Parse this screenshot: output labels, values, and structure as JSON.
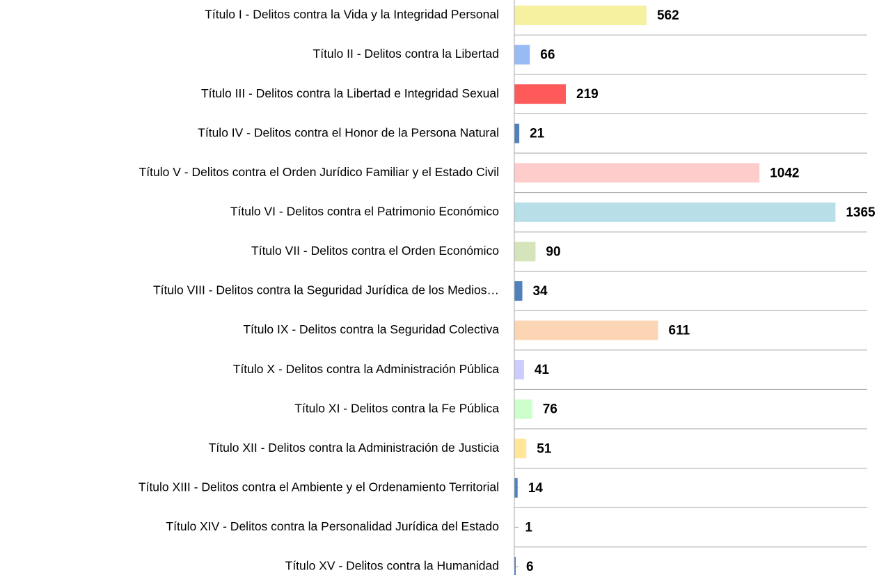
{
  "chart_data": {
    "type": "bar",
    "orientation": "horizontal",
    "categories": [
      "Título I - Delitos contra la Vida y la Integridad Personal",
      "Título II - Delitos contra la Libertad",
      "Título III - Delitos contra la Libertad e Integridad Sexual",
      "Título IV - Delitos contra el Honor de la Persona  Natural",
      "Título V - Delitos contra el Orden Jurídico Familiar y el Estado Civil",
      "Título VI - Delitos contra el Patrimonio Económico",
      "Título VII - Delitos contra el Orden Económico",
      "Título VIII - Delitos  contra la Seguridad Jurídica de los Medios…",
      "Título IX - Delitos contra la Seguridad Colectiva",
      "Título X - Delitos contra la Administración Pública",
      "Título XI - Delitos contra la Fe Pública",
      "Título XII - Delitos contra la Administración de Justicia",
      "Título XIII - Delitos contra el Ambiente y el Ordenamiento Territorial",
      "Título XIV - Delitos contra la Personalidad Jurídica del Estado",
      "Título XV - Delitos contra la Humanidad"
    ],
    "values": [
      562,
      66,
      219,
      21,
      1042,
      1365,
      90,
      34,
      611,
      41,
      76,
      51,
      14,
      1,
      6
    ],
    "colors": [
      "#f6f1a0",
      "#99bbf5",
      "#ff5a5a",
      "#4f81bd",
      "#ffcccc",
      "#b8dfe8",
      "#d6e4bc",
      "#4f81bd",
      "#fcd5b4",
      "#ccccff",
      "#ccffcc",
      "#ffe699",
      "#4f81bd",
      "#4f81bd",
      "#4f81bd"
    ],
    "xlim": [
      0,
      1500
    ],
    "grid": true
  }
}
